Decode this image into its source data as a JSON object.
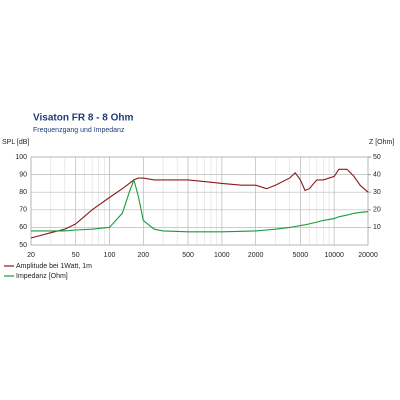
{
  "chart_data": {
    "type": "line",
    "title": "Visaton FR 8 - 8 Ohm",
    "subtitle": "Frequenzgang und Impedanz",
    "y_label": "SPL [dB]",
    "y2_label": "Z [Ohm]",
    "log_x": true,
    "grid": true,
    "x": [
      20,
      30,
      40,
      50,
      70,
      100,
      130,
      150,
      165,
      180,
      200,
      250,
      300,
      500,
      700,
      1000,
      1500,
      2000,
      2500,
      3000,
      4000,
      4500,
      5000,
      5500,
      6000,
      7000,
      8000,
      10000,
      11000,
      13000,
      15000,
      17000,
      20000
    ],
    "xlim": [
      20,
      20000
    ],
    "xticks": [
      20,
      50,
      100,
      200,
      500,
      1000,
      2000,
      5000,
      10000,
      20000
    ],
    "ylim": [
      50,
      100
    ],
    "yticks": [
      50,
      60,
      70,
      80,
      90,
      100
    ],
    "y2lim": [
      0,
      50
    ],
    "y2ticks": [
      10,
      20,
      30,
      40,
      50
    ],
    "series": [
      {
        "name": "Amplitude bei 1Watt, 1m",
        "color": "#8b1a1a",
        "values": [
          54,
          57,
          59,
          62,
          70,
          77,
          82,
          85,
          87,
          88,
          88,
          87,
          87,
          87,
          86,
          85,
          84,
          84,
          82,
          84,
          88,
          91,
          87,
          81,
          82,
          87,
          87,
          89,
          93,
          93,
          89,
          84,
          80
        ]
      },
      {
        "name": "Impedanz [Ohm]",
        "color": "#1a9a3a",
        "axis": "y2",
        "values": [
          8,
          8,
          8,
          8.5,
          9,
          10,
          18,
          30,
          37,
          28,
          14,
          9,
          8,
          7.5,
          7.5,
          7.5,
          7.8,
          8,
          8.5,
          9,
          10,
          10.5,
          11,
          11.5,
          12,
          13,
          14,
          15,
          16,
          17,
          18,
          18.5,
          19
        ]
      }
    ]
  }
}
